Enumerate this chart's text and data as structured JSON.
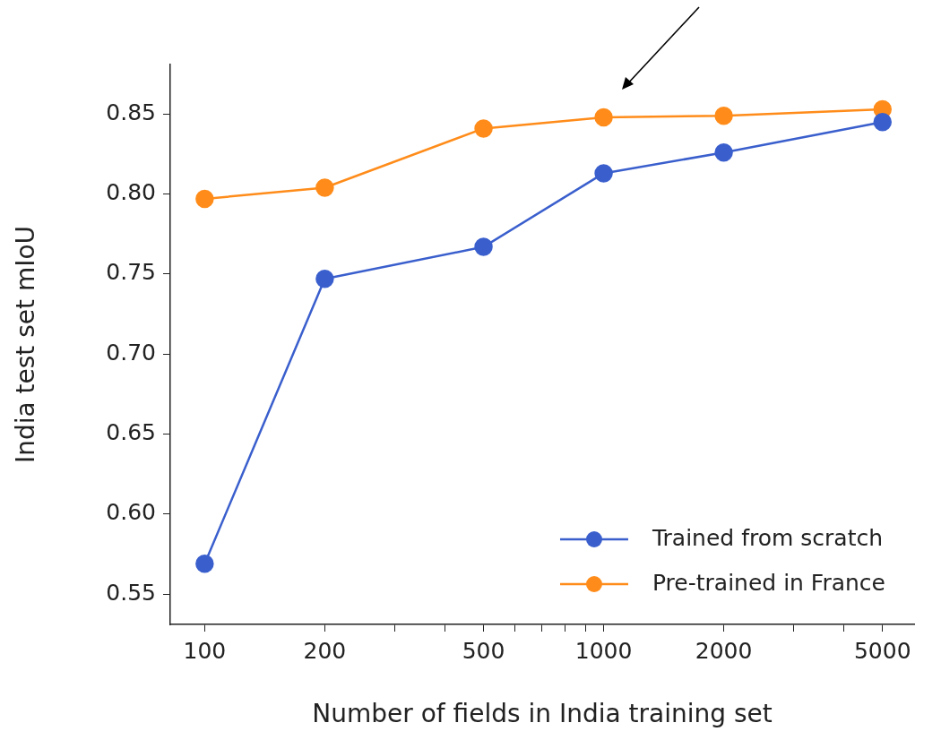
{
  "chart_data": {
    "type": "line",
    "xlabel": "Number of fields in India training set",
    "ylabel": "India test set mIoU",
    "x": [
      100,
      200,
      500,
      1000,
      2000,
      5000
    ],
    "series": [
      {
        "name": "Trained from scratch",
        "color": "#3a5fcd",
        "values": [
          0.569,
          0.747,
          0.767,
          0.813,
          0.826,
          0.845
        ]
      },
      {
        "name": "Pre-trained in France",
        "color": "#ff8c1a",
        "values": [
          0.797,
          0.804,
          0.841,
          0.848,
          0.849,
          0.853
        ]
      }
    ],
    "log": "x",
    "xlim": [
      82,
      6000
    ],
    "ylim": [
      0.531,
      0.881
    ],
    "xticks": [
      100,
      200,
      {
        "value": 300,
        "label": null
      },
      {
        "value": 400,
        "label": null
      },
      500,
      {
        "value": 600,
        "label": null
      },
      {
        "value": 700,
        "label": null
      },
      {
        "value": 800,
        "label": null
      },
      {
        "value": 900,
        "label": null
      },
      1000,
      2000,
      {
        "value": 3000,
        "label": null
      },
      {
        "value": 4000,
        "label": null
      },
      5000
    ],
    "yticks": [
      {
        "value": 0.55,
        "label": "0.55"
      },
      {
        "value": 0.6,
        "label": "0.60"
      },
      {
        "value": 0.65,
        "label": "0.65"
      },
      {
        "value": 0.7,
        "label": "0.70"
      },
      {
        "value": 0.75,
        "label": "0.75"
      },
      {
        "value": 0.8,
        "label": "0.80"
      },
      {
        "value": 0.85,
        "label": "0.85"
      }
    ],
    "grid": false,
    "legend": "bottom right",
    "marker": "circle",
    "line_style": "solid"
  }
}
